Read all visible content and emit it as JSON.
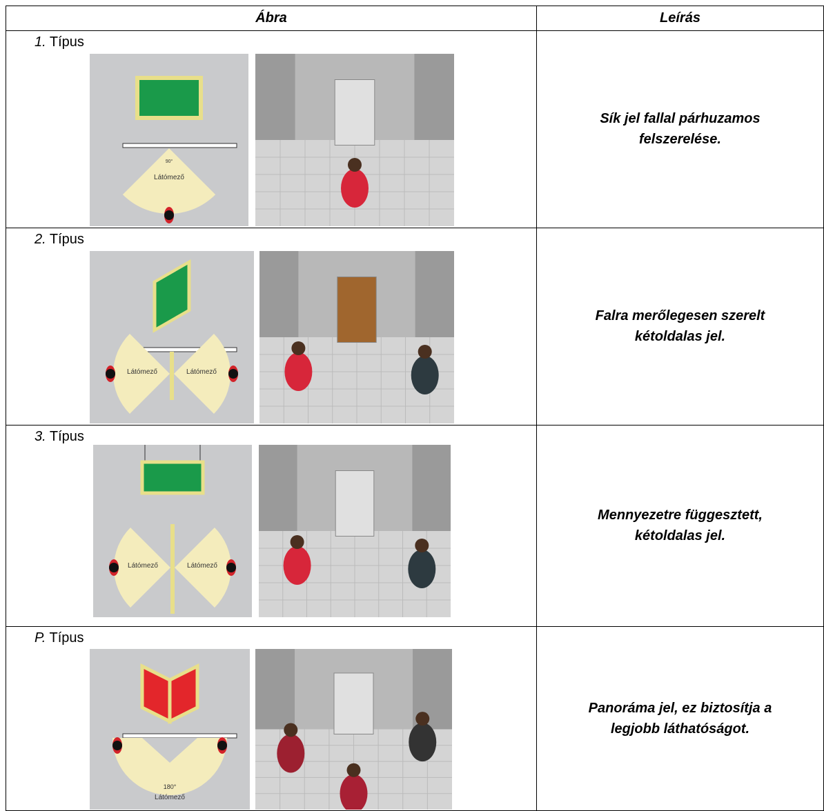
{
  "table": {
    "header": [
      "Ábra",
      "Leírás"
    ],
    "rows": [
      {
        "number": "1.",
        "label": "Típus",
        "description": [
          "Sík jel fallal párhuzamos",
          "felszerelése."
        ],
        "diagram_labels": [
          "90°",
          "Látómező"
        ]
      },
      {
        "number": "2.",
        "label": "Típus",
        "description": [
          "Falra merőlegesen szerelt",
          "kétoldalas jel."
        ],
        "diagram_labels": [
          "Látómező",
          "Látómező"
        ]
      },
      {
        "number": "3.",
        "label": "Típus",
        "description": [
          "Mennyezetre függesztett,",
          "kétoldalas jel."
        ],
        "diagram_labels": [
          "Látómező",
          "Látómező"
        ]
      },
      {
        "number": "P.",
        "label": "Típus",
        "description": [
          "Panoráma jel, ez biztosítja a",
          "legjobb láthatóságot."
        ],
        "diagram_labels": [
          "180°",
          "Látómező"
        ]
      }
    ]
  }
}
